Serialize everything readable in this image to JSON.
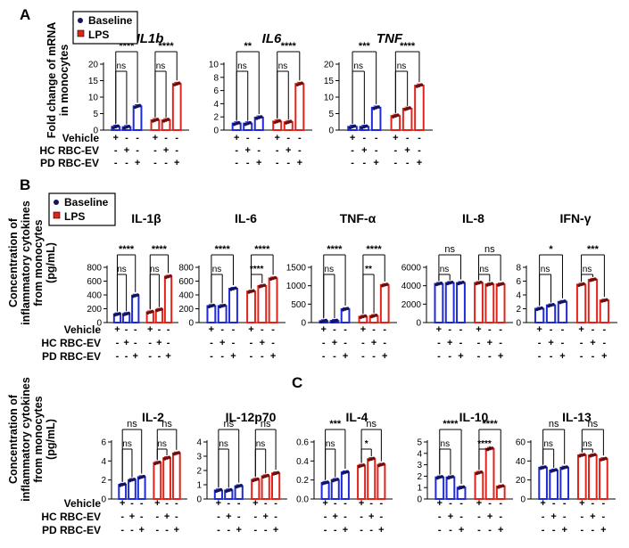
{
  "figure": {
    "panel_labels": [
      "A",
      "B",
      "C"
    ],
    "condition_labels": [
      "Vehicle",
      "HC RBC-EV",
      "PD RBC-EV"
    ],
    "legend": [
      {
        "label": "Baseline",
        "color": "#1f2bd6"
      },
      {
        "label": "LPS",
        "color": "#e0241b"
      }
    ],
    "ylabel_A": [
      "Fold change of mRNA",
      "in monocytes"
    ],
    "ylabel_cytokine": [
      "Concentration of",
      "inflammatory cytokines",
      "from monocytes",
      "(pg/mL)"
    ],
    "signs": [
      "+",
      "-"
    ],
    "colors": {
      "baseline": "#1f2bd6",
      "lps": "#e0241b",
      "marker_baseline": "#14145a",
      "marker_lps": "#6b0f0f"
    }
  },
  "chart_data": [
    {
      "type": "bar",
      "title": "IL1b",
      "ylim": [
        0,
        20
      ],
      "yticks": [
        0,
        5,
        10,
        15,
        20
      ],
      "categories": [
        "Vehicle",
        "HC RBC-EV",
        "PD RBC-EV"
      ],
      "series": [
        {
          "name": "Baseline",
          "values": [
            1.0,
            0.9,
            7.2
          ]
        },
        {
          "name": "LPS",
          "values": [
            3.0,
            3.0,
            14.0
          ]
        }
      ],
      "annotations": [
        "ns",
        "****",
        "ns",
        "****"
      ]
    },
    {
      "type": "bar",
      "title": "IL6",
      "ylim": [
        0,
        10
      ],
      "yticks": [
        0,
        2,
        4,
        6,
        8,
        10
      ],
      "categories": [
        "Vehicle",
        "HC RBC-EV",
        "PD RBC-EV"
      ],
      "series": [
        {
          "name": "Baseline",
          "values": [
            1.0,
            1.0,
            1.9
          ]
        },
        {
          "name": "LPS",
          "values": [
            1.3,
            1.2,
            7.0
          ]
        }
      ],
      "annotations": [
        "ns",
        "**",
        "ns",
        "****"
      ]
    },
    {
      "type": "bar",
      "title": "TNF",
      "ylim": [
        0,
        20
      ],
      "yticks": [
        0,
        5,
        10,
        15,
        20
      ],
      "categories": [
        "Vehicle",
        "HC RBC-EV",
        "PD RBC-EV"
      ],
      "series": [
        {
          "name": "Baseline",
          "values": [
            1.0,
            1.0,
            6.8
          ]
        },
        {
          "name": "LPS",
          "values": [
            4.3,
            6.5,
            13.5
          ]
        }
      ],
      "annotations": [
        "ns",
        "***",
        "ns",
        "****"
      ]
    },
    {
      "type": "bar",
      "title": "IL-1β",
      "ylim": [
        0,
        800
      ],
      "yticks": [
        0,
        200,
        400,
        600,
        800
      ],
      "categories": [
        "Vehicle",
        "HC RBC-EV",
        "PD RBC-EV"
      ],
      "series": [
        {
          "name": "Baseline",
          "values": [
            120,
            125,
            390
          ]
        },
        {
          "name": "LPS",
          "values": [
            150,
            185,
            665
          ]
        }
      ],
      "annotations": [
        "ns",
        "****",
        "ns",
        "****"
      ]
    },
    {
      "type": "bar",
      "title": "IL-6",
      "ylim": [
        0,
        800
      ],
      "yticks": [
        0,
        200,
        400,
        600,
        800
      ],
      "categories": [
        "Vehicle",
        "HC RBC-EV",
        "PD RBC-EV"
      ],
      "series": [
        {
          "name": "Baseline",
          "values": [
            240,
            240,
            490
          ]
        },
        {
          "name": "LPS",
          "values": [
            450,
            530,
            640
          ]
        }
      ],
      "annotations": [
        "ns",
        "****",
        "****",
        "****"
      ]
    },
    {
      "type": "bar",
      "title": "TNF-α",
      "ylim": [
        0,
        1500
      ],
      "yticks": [
        0,
        500,
        1000,
        1500
      ],
      "categories": [
        "Vehicle",
        "HC RBC-EV",
        "PD RBC-EV"
      ],
      "series": [
        {
          "name": "Baseline",
          "values": [
            40,
            45,
            365
          ]
        },
        {
          "name": "LPS",
          "values": [
            160,
            180,
            1020
          ]
        }
      ],
      "annotations": [
        "ns",
        "****",
        "**",
        "****"
      ]
    },
    {
      "type": "bar",
      "title": "IL-8",
      "ylim": [
        0,
        6000
      ],
      "yticks": [
        0,
        2000,
        4000,
        6000
      ],
      "categories": [
        "Vehicle",
        "HC RBC-EV",
        "PD RBC-EV"
      ],
      "series": [
        {
          "name": "Baseline",
          "values": [
            4200,
            4300,
            4300
          ]
        },
        {
          "name": "LPS",
          "values": [
            4300,
            4150,
            4150
          ]
        }
      ],
      "annotations": [
        "ns",
        "ns",
        "ns",
        "ns"
      ]
    },
    {
      "type": "bar",
      "title": "IFN-γ",
      "ylim": [
        0,
        8
      ],
      "yticks": [
        0,
        2,
        4,
        6,
        8
      ],
      "categories": [
        "Vehicle",
        "HC RBC-EV",
        "PD RBC-EV"
      ],
      "series": [
        {
          "name": "Baseline",
          "values": [
            2.0,
            2.5,
            3.0
          ]
        },
        {
          "name": "LPS",
          "values": [
            5.5,
            6.2,
            3.2
          ]
        }
      ],
      "annotations": [
        "ns",
        "*",
        "ns",
        "***"
      ]
    },
    {
      "type": "bar",
      "title": "IL-2",
      "ylim": [
        0,
        6
      ],
      "yticks": [
        0,
        2,
        4,
        6
      ],
      "categories": [
        "Vehicle",
        "HC RBC-EV",
        "PD RBC-EV"
      ],
      "series": [
        {
          "name": "Baseline",
          "values": [
            1.5,
            2.0,
            2.3
          ]
        },
        {
          "name": "LPS",
          "values": [
            3.8,
            4.3,
            4.8
          ]
        }
      ],
      "annotations": [
        "ns",
        "ns",
        "ns",
        "ns"
      ]
    },
    {
      "type": "bar",
      "title": "IL-12p70",
      "ylim": [
        0,
        4
      ],
      "yticks": [
        0,
        1,
        2,
        3,
        4
      ],
      "categories": [
        "Vehicle",
        "HC RBC-EV",
        "PD RBC-EV"
      ],
      "series": [
        {
          "name": "Baseline",
          "values": [
            0.6,
            0.6,
            0.9
          ]
        },
        {
          "name": "LPS",
          "values": [
            1.35,
            1.6,
            1.8
          ]
        }
      ],
      "annotations": [
        "ns",
        "ns",
        "ns",
        "ns"
      ]
    },
    {
      "type": "bar",
      "title": "IL-4",
      "ylim": [
        0,
        0.6
      ],
      "yticks": [
        0.0,
        0.2,
        0.4,
        0.6
      ],
      "categories": [
        "Vehicle",
        "HC RBC-EV",
        "PD RBC-EV"
      ],
      "series": [
        {
          "name": "Baseline",
          "values": [
            0.17,
            0.2,
            0.28
          ]
        },
        {
          "name": "LPS",
          "values": [
            0.35,
            0.42,
            0.36
          ]
        }
      ],
      "annotations": [
        "ns",
        "***",
        "*",
        "ns"
      ]
    },
    {
      "type": "bar",
      "title": "IL-10",
      "ylim": [
        0,
        5
      ],
      "yticks": [
        0,
        1,
        2,
        3,
        4,
        5
      ],
      "categories": [
        "Vehicle",
        "HC RBC-EV",
        "PD RBC-EV"
      ],
      "series": [
        {
          "name": "Baseline",
          "values": [
            1.9,
            1.9,
            1.0
          ]
        },
        {
          "name": "LPS",
          "values": [
            2.3,
            4.4,
            1.1
          ]
        }
      ],
      "annotations": [
        "ns",
        "****",
        "****",
        "****"
      ]
    },
    {
      "type": "bar",
      "title": "IL-13",
      "ylim": [
        0,
        60
      ],
      "yticks": [
        0,
        20,
        40,
        60
      ],
      "categories": [
        "Vehicle",
        "HC RBC-EV",
        "PD RBC-EV"
      ],
      "series": [
        {
          "name": "Baseline",
          "values": [
            33,
            30,
            33
          ]
        },
        {
          "name": "LPS",
          "values": [
            46,
            46,
            42
          ]
        }
      ],
      "annotations": [
        "ns",
        "ns",
        "ns",
        "ns"
      ]
    }
  ]
}
